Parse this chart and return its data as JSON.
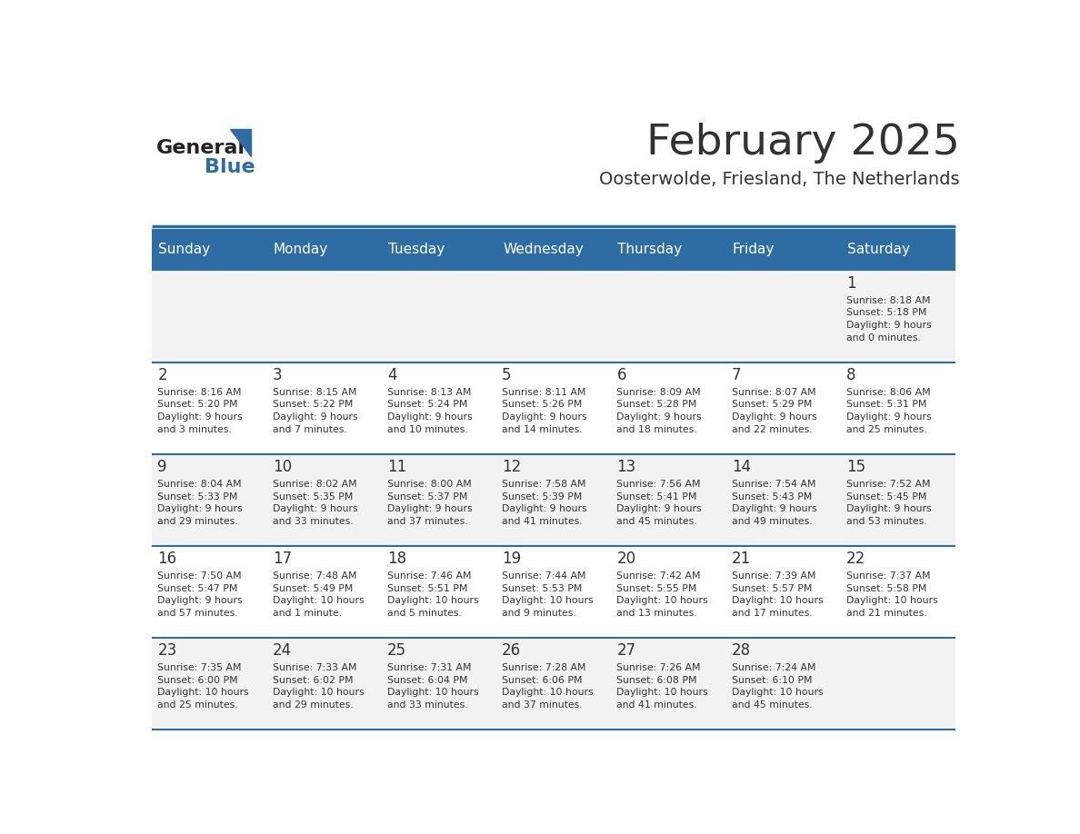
{
  "title": "February 2025",
  "subtitle": "Oosterwolde, Friesland, The Netherlands",
  "days_of_week": [
    "Sunday",
    "Monday",
    "Tuesday",
    "Wednesday",
    "Thursday",
    "Friday",
    "Saturday"
  ],
  "header_bg": "#2E6DA4",
  "header_text": "#FFFFFF",
  "cell_bg_light": "#F2F2F2",
  "cell_bg_white": "#FFFFFF",
  "border_color": "#2E6DA4",
  "text_color": "#333333",
  "title_color": "#333333",
  "weeks": [
    [
      {
        "day": null,
        "info": null
      },
      {
        "day": null,
        "info": null
      },
      {
        "day": null,
        "info": null
      },
      {
        "day": null,
        "info": null
      },
      {
        "day": null,
        "info": null
      },
      {
        "day": null,
        "info": null
      },
      {
        "day": 1,
        "info": "Sunrise: 8:18 AM\nSunset: 5:18 PM\nDaylight: 9 hours\nand 0 minutes."
      }
    ],
    [
      {
        "day": 2,
        "info": "Sunrise: 8:16 AM\nSunset: 5:20 PM\nDaylight: 9 hours\nand 3 minutes."
      },
      {
        "day": 3,
        "info": "Sunrise: 8:15 AM\nSunset: 5:22 PM\nDaylight: 9 hours\nand 7 minutes."
      },
      {
        "day": 4,
        "info": "Sunrise: 8:13 AM\nSunset: 5:24 PM\nDaylight: 9 hours\nand 10 minutes."
      },
      {
        "day": 5,
        "info": "Sunrise: 8:11 AM\nSunset: 5:26 PM\nDaylight: 9 hours\nand 14 minutes."
      },
      {
        "day": 6,
        "info": "Sunrise: 8:09 AM\nSunset: 5:28 PM\nDaylight: 9 hours\nand 18 minutes."
      },
      {
        "day": 7,
        "info": "Sunrise: 8:07 AM\nSunset: 5:29 PM\nDaylight: 9 hours\nand 22 minutes."
      },
      {
        "day": 8,
        "info": "Sunrise: 8:06 AM\nSunset: 5:31 PM\nDaylight: 9 hours\nand 25 minutes."
      }
    ],
    [
      {
        "day": 9,
        "info": "Sunrise: 8:04 AM\nSunset: 5:33 PM\nDaylight: 9 hours\nand 29 minutes."
      },
      {
        "day": 10,
        "info": "Sunrise: 8:02 AM\nSunset: 5:35 PM\nDaylight: 9 hours\nand 33 minutes."
      },
      {
        "day": 11,
        "info": "Sunrise: 8:00 AM\nSunset: 5:37 PM\nDaylight: 9 hours\nand 37 minutes."
      },
      {
        "day": 12,
        "info": "Sunrise: 7:58 AM\nSunset: 5:39 PM\nDaylight: 9 hours\nand 41 minutes."
      },
      {
        "day": 13,
        "info": "Sunrise: 7:56 AM\nSunset: 5:41 PM\nDaylight: 9 hours\nand 45 minutes."
      },
      {
        "day": 14,
        "info": "Sunrise: 7:54 AM\nSunset: 5:43 PM\nDaylight: 9 hours\nand 49 minutes."
      },
      {
        "day": 15,
        "info": "Sunrise: 7:52 AM\nSunset: 5:45 PM\nDaylight: 9 hours\nand 53 minutes."
      }
    ],
    [
      {
        "day": 16,
        "info": "Sunrise: 7:50 AM\nSunset: 5:47 PM\nDaylight: 9 hours\nand 57 minutes."
      },
      {
        "day": 17,
        "info": "Sunrise: 7:48 AM\nSunset: 5:49 PM\nDaylight: 10 hours\nand 1 minute."
      },
      {
        "day": 18,
        "info": "Sunrise: 7:46 AM\nSunset: 5:51 PM\nDaylight: 10 hours\nand 5 minutes."
      },
      {
        "day": 19,
        "info": "Sunrise: 7:44 AM\nSunset: 5:53 PM\nDaylight: 10 hours\nand 9 minutes."
      },
      {
        "day": 20,
        "info": "Sunrise: 7:42 AM\nSunset: 5:55 PM\nDaylight: 10 hours\nand 13 minutes."
      },
      {
        "day": 21,
        "info": "Sunrise: 7:39 AM\nSunset: 5:57 PM\nDaylight: 10 hours\nand 17 minutes."
      },
      {
        "day": 22,
        "info": "Sunrise: 7:37 AM\nSunset: 5:58 PM\nDaylight: 10 hours\nand 21 minutes."
      }
    ],
    [
      {
        "day": 23,
        "info": "Sunrise: 7:35 AM\nSunset: 6:00 PM\nDaylight: 10 hours\nand 25 minutes."
      },
      {
        "day": 24,
        "info": "Sunrise: 7:33 AM\nSunset: 6:02 PM\nDaylight: 10 hours\nand 29 minutes."
      },
      {
        "day": 25,
        "info": "Sunrise: 7:31 AM\nSunset: 6:04 PM\nDaylight: 10 hours\nand 33 minutes."
      },
      {
        "day": 26,
        "info": "Sunrise: 7:28 AM\nSunset: 6:06 PM\nDaylight: 10 hours\nand 37 minutes."
      },
      {
        "day": 27,
        "info": "Sunrise: 7:26 AM\nSunset: 6:08 PM\nDaylight: 10 hours\nand 41 minutes."
      },
      {
        "day": 28,
        "info": "Sunrise: 7:24 AM\nSunset: 6:10 PM\nDaylight: 10 hours\nand 45 minutes."
      },
      {
        "day": null,
        "info": null
      }
    ]
  ],
  "logo_general_color": "#222222",
  "logo_blue_color": "#2E6DA4"
}
